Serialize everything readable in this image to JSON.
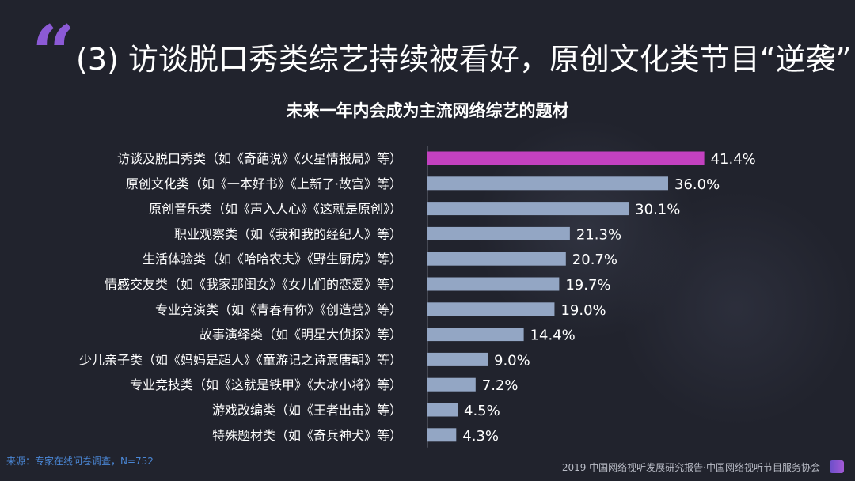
{
  "header": {
    "title": "(3) 访谈脱口秀类综艺持续被看好，原创文化类节目“逆袭”"
  },
  "footer": {
    "source": "来源：专家在线问卷调查，N=752",
    "credit": "2019 中国网络视听发展研究报告·中国网络视听节目服务协会"
  },
  "colors": {
    "background": "#21232d",
    "bar_default": "#93a6c4",
    "bar_highlight": "#c341c0",
    "accent": "#8c5ad6"
  },
  "chart_data": {
    "type": "bar",
    "orientation": "horizontal",
    "title": "未来一年内会成为主流网络综艺的题材",
    "categories": [
      "访谈及脱口秀类（如《奇葩说》《火星情报局》等）",
      "原创文化类（如《一本好书》《上新了·故宫》等）",
      "原创音乐类（如《声入人心》《这就是原创》）",
      "职业观察类（如《我和我的经纪人》等）",
      "生活体验类（如《哈哈农夫》《野生厨房》等）",
      "情感交友类（如《我家那闺女》《女儿们的恋爱》等）",
      "专业竞演类（如《青春有你》《创造营》等）",
      "故事演绎类（如《明星大侦探》等）",
      "少儿亲子类（如《妈妈是超人》《童游记之诗意唐朝》等）",
      "专业竞技类（如《这就是铁甲》《大冰小将》等）",
      "游戏改编类（如《王者出击》等）",
      "特殊题材类（如《奇兵神犬》等）"
    ],
    "values": [
      41.4,
      36.0,
      30.1,
      21.3,
      20.7,
      19.7,
      19.0,
      14.4,
      9.0,
      7.2,
      4.5,
      4.3
    ],
    "value_labels": [
      "41.4%",
      "36.0%",
      "30.1%",
      "21.3%",
      "20.7%",
      "19.7%",
      "19.0%",
      "14.4%",
      "9.0%",
      "7.2%",
      "4.5%",
      "4.3%"
    ],
    "highlight_index": 0,
    "xlim": [
      0,
      45
    ],
    "grid": false
  }
}
